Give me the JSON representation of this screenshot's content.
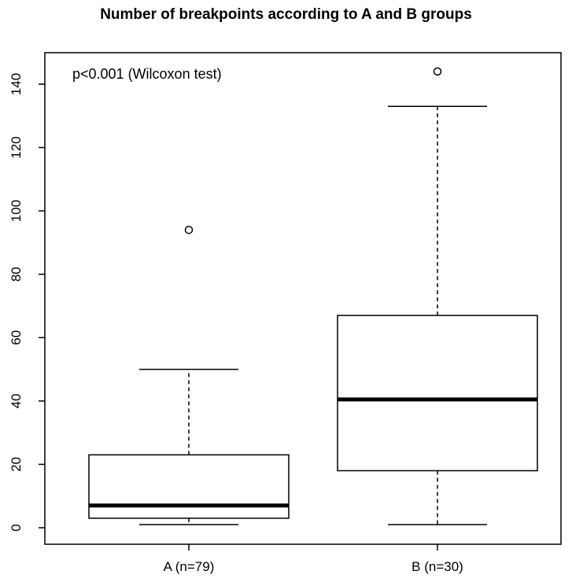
{
  "chart_data": {
    "type": "box",
    "title": "Number of breakpoints according to A and B groups",
    "annotation": "p<0.001 (Wilcoxon test)",
    "xlabel": "",
    "ylabel": "",
    "ylim": [
      -5,
      150
    ],
    "yticks": [
      0,
      20,
      40,
      60,
      80,
      100,
      120,
      140
    ],
    "grid": false,
    "categories": [
      "A (n=79)",
      "B (n=30)"
    ],
    "boxes": [
      {
        "category": "A (n=79)",
        "whisker_low": 1,
        "q1": 3,
        "median": 7,
        "q3": 23,
        "whisker_high": 50,
        "outliers": [
          94
        ]
      },
      {
        "category": "B (n=30)",
        "whisker_low": 1,
        "q1": 18,
        "median": 40.5,
        "q3": 67,
        "whisker_high": 133,
        "outliers": [
          144
        ]
      }
    ],
    "colors": {
      "box_fill": "#ffffff",
      "stroke": "#000000"
    }
  }
}
